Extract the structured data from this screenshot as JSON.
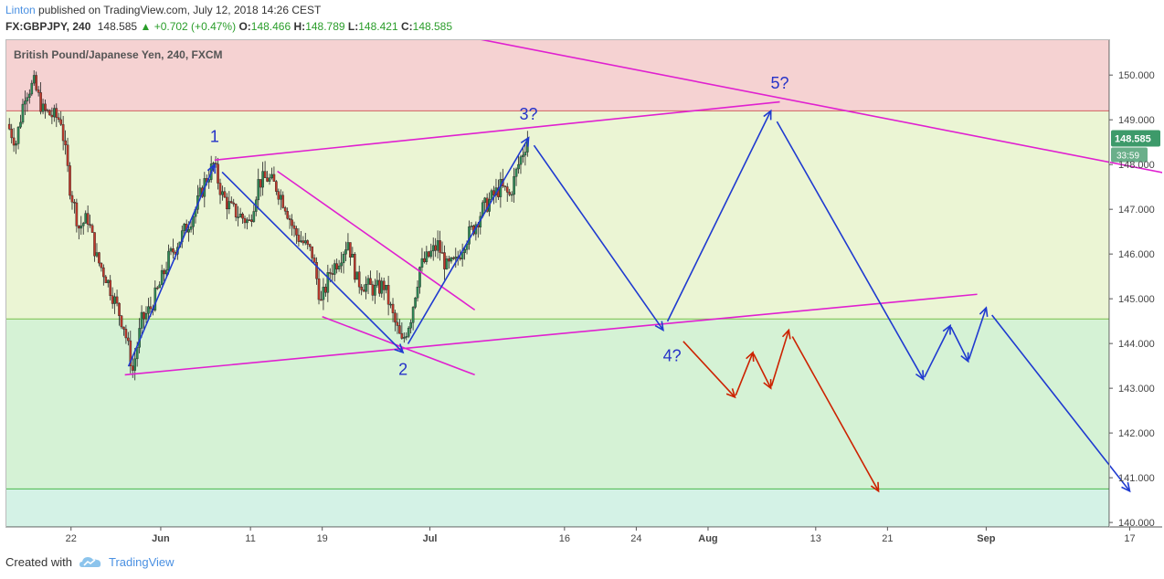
{
  "header": {
    "author": "Linton",
    "publish_text": " published on TradingView.com, July 12, 2018 14:26 CEST",
    "symbol": "FX:GBPJPY, 240",
    "last": "148.585",
    "change_arrow": "▲",
    "change": "+0.702 (+0.47%)",
    "o_label": "O:",
    "o_value": "148.466",
    "h_label": "H:",
    "h_value": "148.789",
    "l_label": "L:",
    "l_value": "148.421",
    "c_label": "C:",
    "c_value": "148.585"
  },
  "chart_title": "British Pound/Japanese Yen, 240, FXCM",
  "price_badge": "148.585",
  "countdown_badge": "33:59",
  "footer": {
    "created_with": "Created with",
    "brand": "TradingView",
    "logo_icon": "tradingview-cloud-icon"
  },
  "colors": {
    "zone_red": "#f5d2d2",
    "zone_yellow": "#ebf5d4",
    "zone_green": "#d5f2d5",
    "zone_teal": "#d4f2e6",
    "up_candle": "#2e8b57",
    "down_candle": "#c0392b",
    "magenta": "#e020d0",
    "wave_blue": "#1f3ad0",
    "alt_red": "#cc2200",
    "badge_green": "#3d9a6a"
  },
  "wave_labels": [
    {
      "text": "1",
      "x": "2018-06-07",
      "y": 148.5
    },
    {
      "text": "2",
      "x": "2018-06-28",
      "y": 143.3
    },
    {
      "text": "3?",
      "x": "2018-07-12",
      "y": 149.0
    },
    {
      "text": "4?",
      "x": "2018-07-28",
      "y": 143.6
    },
    {
      "text": "5?",
      "x": "2018-08-09",
      "y": 149.7
    }
  ],
  "chart_data": {
    "type": "candlestick",
    "symbol": "GBPJPY",
    "interval": "240",
    "x_tick_labels": [
      "22",
      "Jun",
      "11",
      "19",
      "Jul",
      "16",
      "24",
      "Aug",
      "13",
      "21",
      "Sep",
      "17"
    ],
    "y_tick_labels": [
      "140.000",
      "141.000",
      "142.000",
      "143.000",
      "144.000",
      "145.000",
      "146.000",
      "147.000",
      "148.000",
      "149.000",
      "150.000"
    ],
    "ylim": [
      139.9,
      150.8
    ],
    "last_price": 148.585,
    "horizontal_levels": [
      149.2,
      144.55,
      140.75
    ],
    "price_path": [
      {
        "x": "2018-05-15",
        "y": 148.9
      },
      {
        "x": "2018-05-16",
        "y": 148.5
      },
      {
        "x": "2018-05-17",
        "y": 149.6
      },
      {
        "x": "2018-05-18",
        "y": 149.8
      },
      {
        "x": "2018-05-19",
        "y": 149.2
      },
      {
        "x": "2018-05-21",
        "y": 149.0
      },
      {
        "x": "2018-05-22",
        "y": 147.5
      },
      {
        "x": "2018-05-23",
        "y": 146.6
      },
      {
        "x": "2018-05-24",
        "y": 146.8
      },
      {
        "x": "2018-05-25",
        "y": 145.9
      },
      {
        "x": "2018-05-26",
        "y": 145.5
      },
      {
        "x": "2018-05-28",
        "y": 144.4
      },
      {
        "x": "2018-05-29",
        "y": 143.4
      },
      {
        "x": "2018-05-30",
        "y": 144.5
      },
      {
        "x": "2018-05-31",
        "y": 144.8
      },
      {
        "x": "2018-06-01",
        "y": 145.3
      },
      {
        "x": "2018-06-02",
        "y": 145.9
      },
      {
        "x": "2018-06-04",
        "y": 146.6
      },
      {
        "x": "2018-06-05",
        "y": 147.0
      },
      {
        "x": "2018-06-06",
        "y": 147.6
      },
      {
        "x": "2018-06-07",
        "y": 148.0
      },
      {
        "x": "2018-06-08",
        "y": 147.3
      },
      {
        "x": "2018-06-09",
        "y": 147.0
      },
      {
        "x": "2018-06-11",
        "y": 146.7
      },
      {
        "x": "2018-06-12",
        "y": 147.6
      },
      {
        "x": "2018-06-13",
        "y": 147.7
      },
      {
        "x": "2018-06-14",
        "y": 147.5
      },
      {
        "x": "2018-06-15",
        "y": 147.1
      },
      {
        "x": "2018-06-16",
        "y": 146.5
      },
      {
        "x": "2018-06-18",
        "y": 146.0
      },
      {
        "x": "2018-06-19",
        "y": 144.9
      },
      {
        "x": "2018-06-20",
        "y": 145.6
      },
      {
        "x": "2018-06-21",
        "y": 145.9
      },
      {
        "x": "2018-06-22",
        "y": 146.3
      },
      {
        "x": "2018-06-23",
        "y": 145.4
      },
      {
        "x": "2018-06-25",
        "y": 145.2
      },
      {
        "x": "2018-06-26",
        "y": 145.3
      },
      {
        "x": "2018-06-27",
        "y": 144.6
      },
      {
        "x": "2018-06-28",
        "y": 144.0
      },
      {
        "x": "2018-06-29",
        "y": 144.6
      },
      {
        "x": "2018-06-30",
        "y": 145.7
      },
      {
        "x": "2018-07-02",
        "y": 146.2
      },
      {
        "x": "2018-07-03",
        "y": 145.7
      },
      {
        "x": "2018-07-04",
        "y": 145.8
      },
      {
        "x": "2018-07-05",
        "y": 146.3
      },
      {
        "x": "2018-07-06",
        "y": 146.6
      },
      {
        "x": "2018-07-07",
        "y": 147.0
      },
      {
        "x": "2018-07-09",
        "y": 147.5
      },
      {
        "x": "2018-07-10",
        "y": 147.3
      },
      {
        "x": "2018-07-11",
        "y": 148.0
      },
      {
        "x": "2018-07-12",
        "y": 148.585
      }
    ],
    "trendlines_magenta": [
      {
        "from": {
          "x": "2018-05-28",
          "y": 143.3
        },
        "to": {
          "x": "2018-08-31",
          "y": 145.1
        }
      },
      {
        "from": {
          "x": "2018-06-07",
          "y": 148.1
        },
        "to": {
          "x": "2018-08-09",
          "y": 149.4
        }
      },
      {
        "from": {
          "x": "2018-07-04",
          "y": 150.9
        },
        "to": {
          "x": "2018-09-25",
          "y": 147.65
        }
      },
      {
        "from": {
          "x": "2018-06-14",
          "y": 147.85
        },
        "to": {
          "x": "2018-07-06",
          "y": 144.75
        }
      },
      {
        "from": {
          "x": "2018-06-19",
          "y": 144.6
        },
        "to": {
          "x": "2018-07-06",
          "y": 143.3
        }
      }
    ],
    "wave_path_blue": [
      {
        "x": "2018-05-28",
        "y": 143.3
      },
      {
        "x": "2018-06-07",
        "y": 148.0
      },
      {
        "x": "2018-06-28",
        "y": 143.8
      },
      {
        "x": "2018-07-12",
        "y": 148.6
      },
      {
        "x": "2018-07-27",
        "y": 144.3
      },
      {
        "x": "2018-08-08",
        "y": 149.2
      },
      {
        "x": "2018-08-25",
        "y": 143.2
      },
      {
        "x": "2018-08-28",
        "y": 144.4
      },
      {
        "x": "2018-08-30",
        "y": 143.6
      },
      {
        "x": "2018-09-01",
        "y": 144.8
      },
      {
        "x": "2018-09-17",
        "y": 140.7
      }
    ],
    "alt_path_red": [
      {
        "x": "2018-07-29",
        "y": 144.1
      },
      {
        "x": "2018-08-04",
        "y": 142.8
      },
      {
        "x": "2018-08-06",
        "y": 143.8
      },
      {
        "x": "2018-08-08",
        "y": 143.0
      },
      {
        "x": "2018-08-10",
        "y": 144.3
      },
      {
        "x": "2018-08-20",
        "y": 140.7
      }
    ]
  }
}
